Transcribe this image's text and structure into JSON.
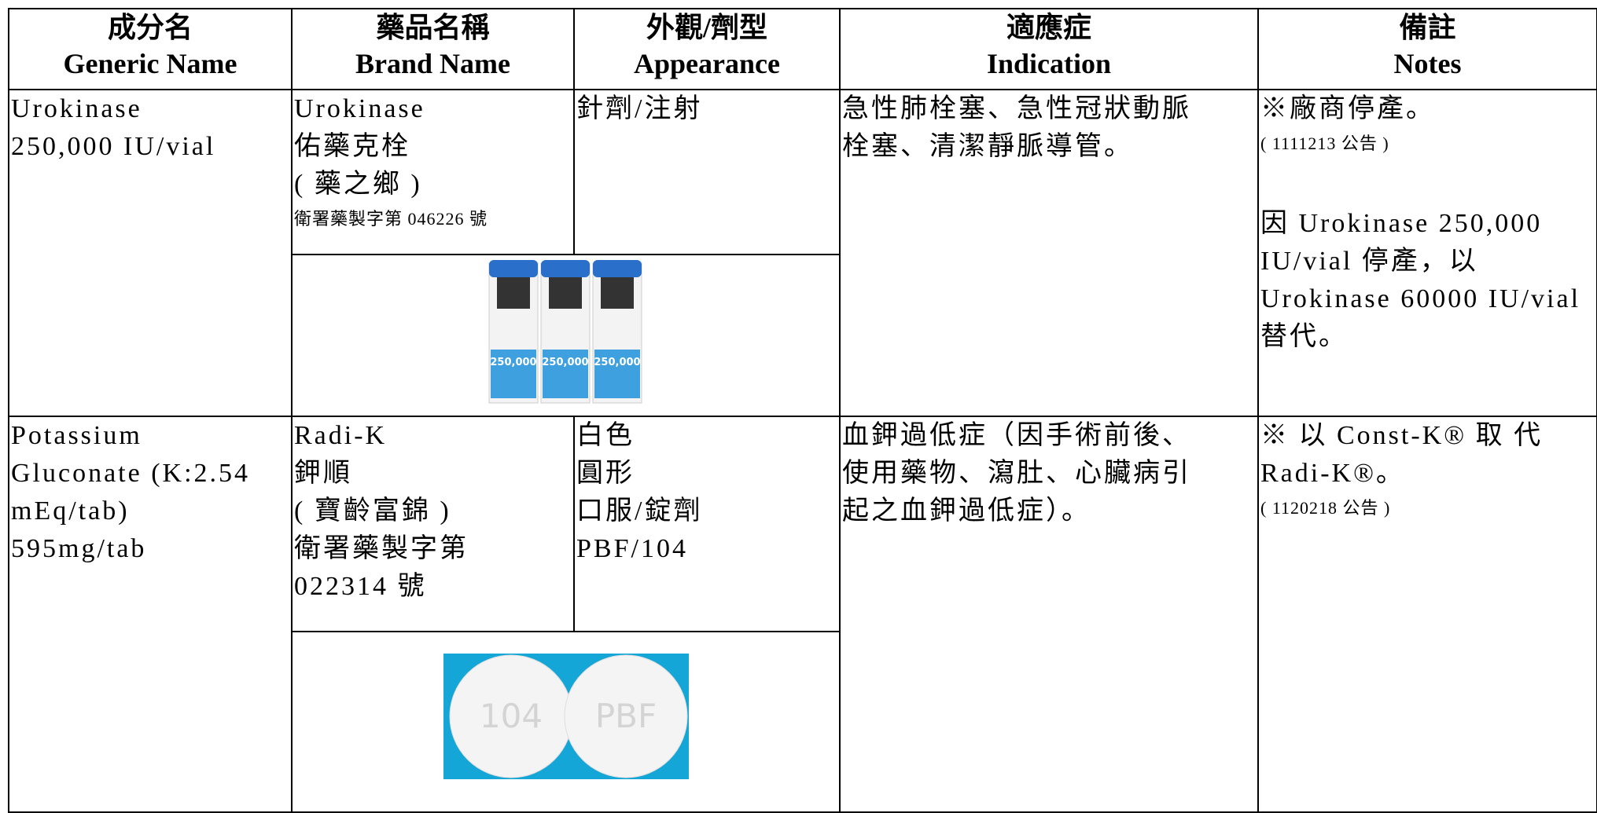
{
  "header": {
    "columns": [
      {
        "zh": "成分名",
        "en": "Generic Name"
      },
      {
        "zh": "藥品名稱",
        "en": "Brand Name"
      },
      {
        "zh": "外觀/劑型",
        "en": "Appearance"
      },
      {
        "zh": "適應症",
        "en": "Indication"
      },
      {
        "zh": "備註",
        "en": "Notes"
      }
    ]
  },
  "rows": [
    {
      "generic": [
        "Urokinase",
        "250,000 IU/vial"
      ],
      "brand": [
        "Urokinase",
        "佑藥克栓",
        "( 藥之鄉 )"
      ],
      "license": [
        "衛署藥製字第 046226 號"
      ],
      "appearance": [
        "針劑/注射"
      ],
      "image_text": [
        "250,000",
        "250,000",
        "250,000"
      ],
      "indication": [
        "急性肺栓塞、急性冠狀動脈",
        "栓塞、清潔靜脈導管。"
      ],
      "notes": [
        "※廠商停產。"
      ],
      "notice": [
        "( 1111213 公告 )"
      ],
      "notes_extra": [
        "因 Urokinase 250,000",
        "IU/vial 停產，以",
        "Urokinase 60000 IU/vial",
        "替代。"
      ]
    },
    {
      "generic": [
        "Potassium",
        "Gluconate (K:2.54",
        "mEq/tab)",
        "595mg/tab"
      ],
      "brand": [
        "Radi-K",
        "鉀順",
        "( 寶齡富錦 )",
        "衛署藥製字第",
        "022314 號"
      ],
      "license": [],
      "appearance": [
        "白色",
        "圓形",
        "口服/錠劑",
        "PBF/104"
      ],
      "image_text": [
        "104",
        "PBF"
      ],
      "indication": [
        "血鉀過低症（因手術前後、",
        "使用藥物、瀉肚、心臟病引",
        "起之血鉀過低症）。"
      ],
      "notes": [
        "※ 以 Const-K® 取 代",
        "Radi-K®。"
      ],
      "notice": [
        "( 1120218 公告 )"
      ],
      "notes_extra": []
    }
  ]
}
